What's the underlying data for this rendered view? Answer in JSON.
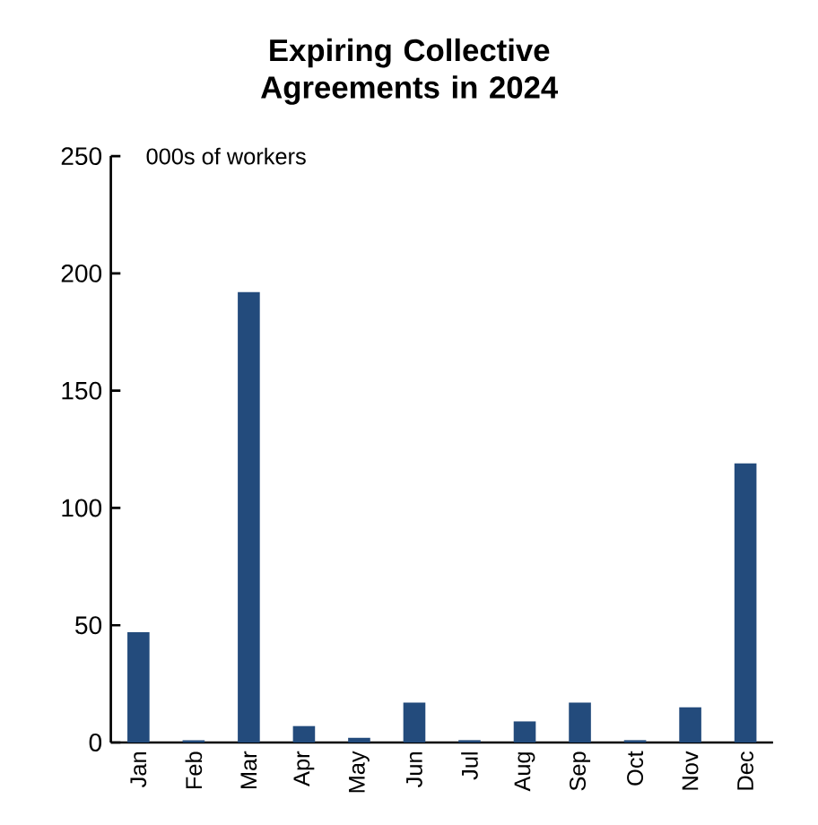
{
  "chart_data": {
    "type": "bar",
    "title": "Expiring Collective Agreements in 2024",
    "ylabel": "000s of workers",
    "categories": [
      "Jan",
      "Feb",
      "Mar",
      "Apr",
      "May",
      "Jun",
      "Jul",
      "Aug",
      "Sep",
      "Oct",
      "Nov",
      "Dec"
    ],
    "values": [
      47,
      1,
      192,
      7,
      2,
      17,
      1,
      9,
      17,
      1,
      15,
      119
    ],
    "color": "#234b7c",
    "ylim": [
      0,
      250
    ],
    "yticks": [
      0,
      50,
      100,
      150,
      200,
      250
    ],
    "grid": false
  }
}
